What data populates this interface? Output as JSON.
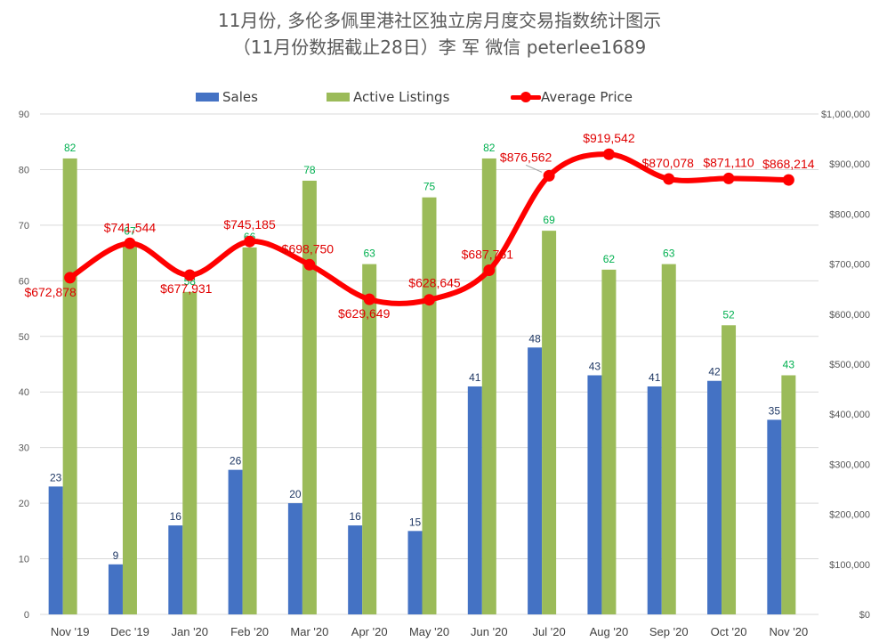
{
  "chart_data": {
    "type": "bar",
    "title": "11月份, 多伦多佩里港社区独立房月度交易指数统计图示",
    "subtitle": "（11月份数据截止28日）李 军  微信  peterlee1689",
    "categories": [
      "Nov '19",
      "Dec '19",
      "Jan '20",
      "Feb '20",
      "Mar '20",
      "Apr '20",
      "May '20",
      "Jun '20",
      "Jul '20",
      "Aug '20",
      "Sep '20",
      "Oct '20",
      "Nov '20"
    ],
    "series": [
      {
        "name": "Sales",
        "type": "bar",
        "axis": "left",
        "color": "#4472c4",
        "values": [
          23,
          9,
          16,
          26,
          20,
          16,
          15,
          41,
          48,
          43,
          41,
          42,
          35
        ]
      },
      {
        "name": "Active Listings",
        "type": "bar",
        "axis": "left",
        "color": "#9bbb59",
        "values": [
          82,
          67,
          58,
          66,
          78,
          63,
          75,
          82,
          69,
          62,
          63,
          52,
          43
        ]
      },
      {
        "name": "Average Price",
        "type": "line",
        "axis": "right",
        "color": "#ff0000",
        "values": [
          672878,
          741544,
          677931,
          745185,
          698750,
          629649,
          628645,
          687761,
          876562,
          919542,
          870078,
          871110,
          868214
        ],
        "labels": [
          "$672,878",
          "$741,544",
          "$677,931",
          "$745,185",
          "$698,750",
          "$629,649",
          "$628,645",
          "$687,761",
          "$876,562",
          "$919,542",
          "$870,078",
          "$871,110",
          "$868,214"
        ]
      }
    ],
    "y_left": {
      "min": 0,
      "max": 90,
      "ticks": [
        "0",
        "10",
        "20",
        "30",
        "40",
        "50",
        "60",
        "70",
        "80",
        "90"
      ]
    },
    "y_right": {
      "min": 0,
      "max": 1000000,
      "ticks": [
        "$0",
        "$100,000",
        "$200,000",
        "$300,000",
        "$400,000",
        "$500,000",
        "$600,000",
        "$700,000",
        "$800,000",
        "$900,000",
        "$1,000,000"
      ]
    },
    "grid": true,
    "legend_position": "top"
  }
}
